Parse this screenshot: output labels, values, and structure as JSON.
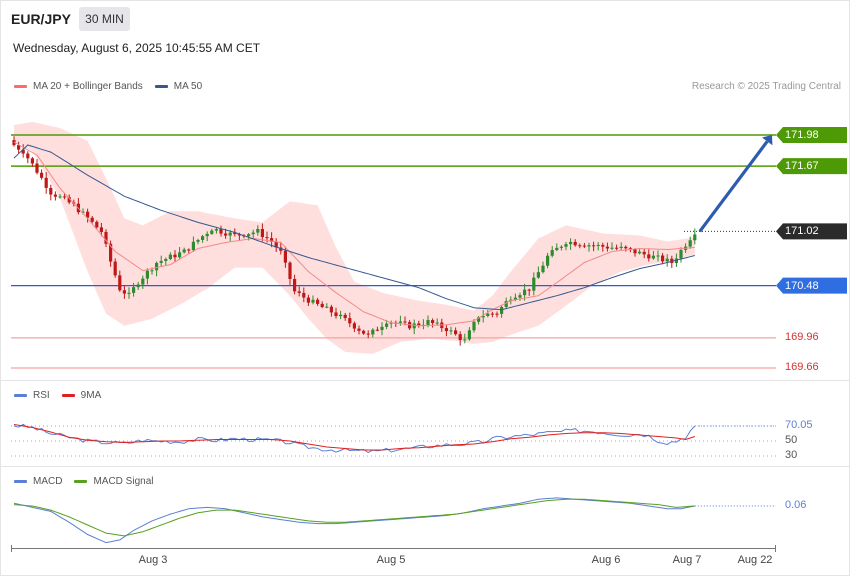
{
  "header": {
    "symbol": "EUR/JPY",
    "timeframe": "30 MIN",
    "datetime": "Wednesday, August 6, 2025 10:45:55 AM CET",
    "credit": "Research © 2025 Trading Central"
  },
  "legend": {
    "main": [
      {
        "label": "MA 20 + Bollinger Bands",
        "color": "#ff6b6b"
      },
      {
        "label": "MA 50",
        "color": "#34588f"
      }
    ],
    "rsi": [
      {
        "label": "RSI",
        "color": "#5b7fd6"
      },
      {
        "label": "9MA",
        "color": "#e02020"
      }
    ],
    "macd": [
      {
        "label": "MACD",
        "color": "#5b7fd6"
      },
      {
        "label": "MACD Signal",
        "color": "#58a020"
      }
    ]
  },
  "colors": {
    "up": "#2e8b2e",
    "down": "#c01818",
    "resistance": "#4e9a06",
    "support": "#2f5cc8",
    "target_arrow": "#2d5bb0",
    "band_fill": "#ffdede",
    "weak_level": "#f4a3a3",
    "weak_text": "#d33333",
    "current_tag": "#2b2b2b"
  },
  "chart_data": [
    {
      "type": "candlestick",
      "title": "EUR/JPY",
      "timeframe": "30 MIN",
      "ylim": [
        169.35,
        172.18
      ],
      "x_labels": [
        "Aug 3",
        "Aug 5",
        "Aug 6",
        "Aug 7",
        "Aug 22"
      ],
      "current_price": "171.02",
      "levels": [
        {
          "value": 171.98,
          "label": "171.98",
          "kind": "resistance"
        },
        {
          "value": 171.67,
          "label": "171.67",
          "kind": "resistance"
        },
        {
          "value": 171.02,
          "label": "171.02",
          "kind": "current"
        },
        {
          "value": 170.48,
          "label": "170.48",
          "kind": "support"
        },
        {
          "value": 169.96,
          "label": "169.96",
          "kind": "weak"
        },
        {
          "value": 169.66,
          "label": "169.66",
          "kind": "weak"
        }
      ],
      "target_arrow": {
        "from": 171.02,
        "to": 171.98
      },
      "close_anchors": [
        [
          0,
          171.88
        ],
        [
          2,
          171.82
        ],
        [
          5,
          171.62
        ],
        [
          8,
          171.41
        ],
        [
          13,
          171.28
        ],
        [
          19,
          171.02
        ],
        [
          21,
          170.72
        ],
        [
          23,
          170.45
        ],
        [
          25,
          170.38
        ],
        [
          27,
          170.52
        ],
        [
          31,
          170.71
        ],
        [
          37,
          170.82
        ],
        [
          43,
          171.05
        ],
        [
          48,
          170.98
        ],
        [
          53,
          171.02
        ],
        [
          56,
          170.92
        ],
        [
          58,
          170.81
        ],
        [
          61,
          170.42
        ],
        [
          65,
          170.31
        ],
        [
          69,
          170.22
        ],
        [
          73,
          170.11
        ],
        [
          77,
          169.98
        ],
        [
          81,
          170.13
        ],
        [
          86,
          170.08
        ],
        [
          90,
          170.12
        ],
        [
          94,
          170.05
        ],
        [
          98,
          169.93
        ],
        [
          101,
          170.18
        ],
        [
          105,
          170.21
        ],
        [
          108,
          170.37
        ],
        [
          112,
          170.45
        ],
        [
          116,
          170.77
        ],
        [
          120,
          170.92
        ],
        [
          126,
          170.88
        ],
        [
          132,
          170.85
        ],
        [
          138,
          170.78
        ],
        [
          143,
          170.71
        ],
        [
          145,
          170.83
        ],
        [
          148,
          171.02
        ]
      ],
      "ma20_anchors": [
        [
          0,
          171.91
        ],
        [
          5,
          171.78
        ],
        [
          10,
          171.45
        ],
        [
          16,
          171.15
        ],
        [
          22,
          170.82
        ],
        [
          28,
          170.63
        ],
        [
          34,
          170.69
        ],
        [
          40,
          170.85
        ],
        [
          46,
          170.91
        ],
        [
          52,
          170.95
        ],
        [
          58,
          170.91
        ],
        [
          64,
          170.62
        ],
        [
          70,
          170.41
        ],
        [
          76,
          170.22
        ],
        [
          82,
          170.11
        ],
        [
          88,
          170.08
        ],
        [
          94,
          170.09
        ],
        [
          100,
          170.13
        ],
        [
          104,
          170.24
        ],
        [
          108,
          170.33
        ],
        [
          114,
          170.38
        ],
        [
          118,
          170.51
        ],
        [
          124,
          170.71
        ],
        [
          130,
          170.82
        ],
        [
          136,
          170.85
        ],
        [
          142,
          170.84
        ],
        [
          148,
          170.86
        ]
      ],
      "ma50_anchors": [
        [
          0,
          171.75
        ],
        [
          3,
          171.88
        ],
        [
          8,
          171.81
        ],
        [
          16,
          171.58
        ],
        [
          24,
          171.37
        ],
        [
          32,
          171.23
        ],
        [
          40,
          171.11
        ],
        [
          48,
          171.01
        ],
        [
          56,
          170.88
        ],
        [
          64,
          170.76
        ],
        [
          72,
          170.66
        ],
        [
          80,
          170.56
        ],
        [
          88,
          170.46
        ],
        [
          94,
          170.35
        ],
        [
          100,
          170.26
        ],
        [
          106,
          170.24
        ],
        [
          112,
          170.31
        ],
        [
          118,
          170.38
        ],
        [
          124,
          170.46
        ],
        [
          130,
          170.56
        ],
        [
          136,
          170.65
        ],
        [
          142,
          170.71
        ],
        [
          148,
          170.78
        ]
      ],
      "bb_upper_anchors": [
        [
          0,
          172.08
        ],
        [
          4,
          172.11
        ],
        [
          10,
          172.05
        ],
        [
          16,
          171.92
        ],
        [
          20,
          171.55
        ],
        [
          24,
          171.15
        ],
        [
          28,
          171.08
        ],
        [
          34,
          171.22
        ],
        [
          40,
          171.22
        ],
        [
          48,
          171.15
        ],
        [
          54,
          171.11
        ],
        [
          60,
          171.32
        ],
        [
          66,
          171.28
        ],
        [
          70,
          170.86
        ],
        [
          74,
          170.52
        ],
        [
          80,
          170.41
        ],
        [
          88,
          170.33
        ],
        [
          94,
          170.29
        ],
        [
          100,
          170.23
        ],
        [
          104,
          170.38
        ],
        [
          108,
          170.62
        ],
        [
          114,
          170.95
        ],
        [
          120,
          171.08
        ],
        [
          128,
          171.0
        ],
        [
          136,
          170.98
        ],
        [
          142,
          170.92
        ],
        [
          148,
          170.96
        ]
      ],
      "bb_lower_anchors": [
        [
          0,
          171.92
        ],
        [
          4,
          171.82
        ],
        [
          10,
          171.35
        ],
        [
          16,
          170.62
        ],
        [
          20,
          170.2
        ],
        [
          24,
          170.08
        ],
        [
          30,
          170.15
        ],
        [
          36,
          170.29
        ],
        [
          42,
          170.45
        ],
        [
          48,
          170.66
        ],
        [
          54,
          170.66
        ],
        [
          60,
          170.38
        ],
        [
          64,
          170.15
        ],
        [
          68,
          169.95
        ],
        [
          72,
          169.82
        ],
        [
          78,
          169.8
        ],
        [
          84,
          169.92
        ],
        [
          90,
          169.95
        ],
        [
          96,
          169.93
        ],
        [
          100,
          169.9
        ],
        [
          104,
          169.92
        ],
        [
          108,
          169.99
        ],
        [
          114,
          170.08
        ],
        [
          120,
          170.28
        ],
        [
          126,
          170.49
        ],
        [
          132,
          170.62
        ],
        [
          138,
          170.69
        ],
        [
          142,
          170.72
        ],
        [
          148,
          170.79
        ]
      ]
    },
    {
      "type": "line",
      "title": "RSI",
      "series_names": [
        "RSI",
        "9MA"
      ],
      "ylim": [
        25,
        78
      ],
      "gridlines": [
        70,
        50,
        30
      ],
      "tick_labels": [
        "70.05",
        "50",
        "30"
      ],
      "rsi_anchors": [
        [
          0,
          71
        ],
        [
          4,
          68
        ],
        [
          8,
          60
        ],
        [
          12,
          55
        ],
        [
          16,
          50
        ],
        [
          20,
          48
        ],
        [
          24,
          47
        ],
        [
          28,
          51
        ],
        [
          32,
          50
        ],
        [
          36,
          49
        ],
        [
          40,
          52
        ],
        [
          44,
          51
        ],
        [
          48,
          53
        ],
        [
          52,
          52
        ],
        [
          56,
          51
        ],
        [
          60,
          48
        ],
        [
          62,
          44
        ],
        [
          66,
          40
        ],
        [
          70,
          38
        ],
        [
          74,
          37
        ],
        [
          78,
          36
        ],
        [
          82,
          38
        ],
        [
          86,
          40
        ],
        [
          90,
          43
        ],
        [
          94,
          45
        ],
        [
          98,
          46
        ],
        [
          102,
          49
        ],
        [
          104,
          53
        ],
        [
          108,
          56
        ],
        [
          112,
          58
        ],
        [
          116,
          61
        ],
        [
          118,
          62
        ],
        [
          122,
          64
        ],
        [
          126,
          63
        ],
        [
          130,
          60
        ],
        [
          134,
          58
        ],
        [
          136,
          60
        ],
        [
          138,
          57
        ],
        [
          140,
          51
        ],
        [
          142,
          48
        ],
        [
          144,
          50
        ],
        [
          146,
          56
        ],
        [
          148,
          70.05
        ]
      ],
      "ma9_anchors": [
        [
          0,
          72
        ],
        [
          4,
          68
        ],
        [
          8,
          62
        ],
        [
          12,
          55
        ],
        [
          16,
          51
        ],
        [
          20,
          49
        ],
        [
          24,
          48
        ],
        [
          28,
          49
        ],
        [
          32,
          50
        ],
        [
          36,
          50
        ],
        [
          40,
          51
        ],
        [
          44,
          52
        ],
        [
          48,
          52
        ],
        [
          52,
          52
        ],
        [
          56,
          52
        ],
        [
          60,
          50
        ],
        [
          64,
          46
        ],
        [
          68,
          42
        ],
        [
          72,
          40
        ],
        [
          76,
          38
        ],
        [
          80,
          38
        ],
        [
          84,
          40
        ],
        [
          88,
          41
        ],
        [
          92,
          43
        ],
        [
          96,
          45
        ],
        [
          100,
          46
        ],
        [
          104,
          49
        ],
        [
          108,
          53
        ],
        [
          112,
          55
        ],
        [
          116,
          58
        ],
        [
          120,
          60
        ],
        [
          124,
          61
        ],
        [
          128,
          61
        ],
        [
          132,
          60
        ],
        [
          136,
          58
        ],
        [
          140,
          56
        ],
        [
          144,
          54
        ],
        [
          146,
          52
        ],
        [
          148,
          56
        ]
      ]
    },
    {
      "type": "line",
      "title": "MACD",
      "series_names": [
        "MACD",
        "MACD Signal"
      ],
      "ylim": [
        -0.26,
        0.14
      ],
      "tick_labels": [
        "0.06"
      ],
      "macd_anchors": [
        [
          0,
          0.08
        ],
        [
          4,
          0.05
        ],
        [
          8,
          0.02
        ],
        [
          12,
          -0.06
        ],
        [
          16,
          -0.15
        ],
        [
          20,
          -0.21
        ],
        [
          23,
          -0.19
        ],
        [
          26,
          -0.12
        ],
        [
          30,
          -0.05
        ],
        [
          34,
          0.0
        ],
        [
          38,
          0.04
        ],
        [
          42,
          0.05
        ],
        [
          46,
          0.04
        ],
        [
          50,
          0.01
        ],
        [
          54,
          -0.02
        ],
        [
          58,
          -0.04
        ],
        [
          62,
          -0.06
        ],
        [
          66,
          -0.07
        ],
        [
          70,
          -0.07
        ],
        [
          74,
          -0.06
        ],
        [
          78,
          -0.05
        ],
        [
          82,
          -0.04
        ],
        [
          86,
          -0.03
        ],
        [
          90,
          -0.02
        ],
        [
          94,
          -0.01
        ],
        [
          98,
          0.01
        ],
        [
          102,
          0.04
        ],
        [
          106,
          0.06
        ],
        [
          110,
          0.08
        ],
        [
          114,
          0.11
        ],
        [
          118,
          0.12
        ],
        [
          122,
          0.11
        ],
        [
          126,
          0.1
        ],
        [
          130,
          0.09
        ],
        [
          134,
          0.08
        ],
        [
          138,
          0.06
        ],
        [
          142,
          0.04
        ],
        [
          145,
          0.04
        ],
        [
          148,
          0.06
        ]
      ],
      "signal_anchors": [
        [
          0,
          0.07
        ],
        [
          4,
          0.06
        ],
        [
          8,
          0.03
        ],
        [
          12,
          -0.02
        ],
        [
          16,
          -0.08
        ],
        [
          20,
          -0.14
        ],
        [
          24,
          -0.16
        ],
        [
          28,
          -0.13
        ],
        [
          32,
          -0.08
        ],
        [
          36,
          -0.03
        ],
        [
          40,
          0.01
        ],
        [
          44,
          0.03
        ],
        [
          48,
          0.03
        ],
        [
          52,
          0.01
        ],
        [
          56,
          -0.01
        ],
        [
          60,
          -0.03
        ],
        [
          64,
          -0.05
        ],
        [
          68,
          -0.06
        ],
        [
          72,
          -0.06
        ],
        [
          76,
          -0.05
        ],
        [
          80,
          -0.04
        ],
        [
          84,
          -0.03
        ],
        [
          88,
          -0.02
        ],
        [
          92,
          -0.01
        ],
        [
          96,
          0.0
        ],
        [
          100,
          0.02
        ],
        [
          104,
          0.04
        ],
        [
          108,
          0.06
        ],
        [
          112,
          0.08
        ],
        [
          116,
          0.1
        ],
        [
          120,
          0.11
        ],
        [
          124,
          0.11
        ],
        [
          128,
          0.1
        ],
        [
          132,
          0.09
        ],
        [
          136,
          0.08
        ],
        [
          140,
          0.07
        ],
        [
          144,
          0.05
        ],
        [
          148,
          0.06
        ]
      ]
    }
  ]
}
